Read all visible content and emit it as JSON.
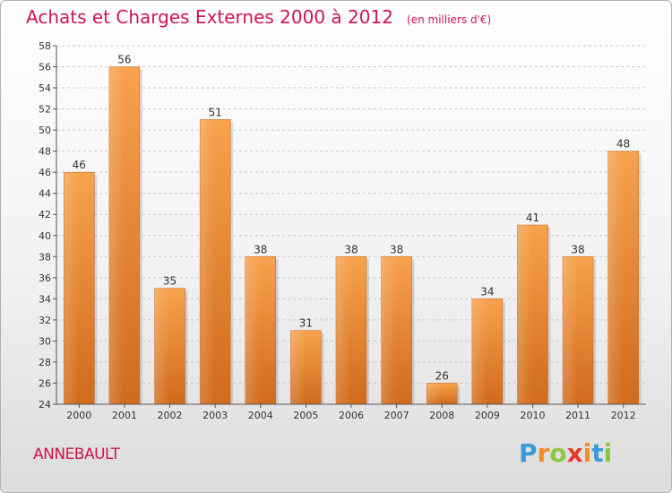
{
  "header": {
    "title": "Achats et Charges Externes 2000 à 2012",
    "subtitle": "(en milliers d'€)"
  },
  "footer": {
    "commune": "ANNEBAULT",
    "logo": {
      "letters": [
        "P",
        "r",
        "o",
        "x",
        "i",
        "t",
        "i"
      ],
      "colors": [
        "#3b9ad9",
        "#f28c28",
        "#8dc63f",
        "#e63a2e",
        "#f28c28",
        "#3b9ad9",
        "#8dc63f"
      ]
    }
  },
  "chart_data": {
    "type": "bar",
    "title": "Achats et Charges Externes 2000 à 2012",
    "subtitle": "(en milliers d'€)",
    "categories": [
      "2000",
      "2001",
      "2002",
      "2003",
      "2004",
      "2005",
      "2006",
      "2007",
      "2008",
      "2009",
      "2010",
      "2011",
      "2012"
    ],
    "values": [
      46,
      56,
      35,
      51,
      38,
      31,
      38,
      38,
      26,
      34,
      41,
      38,
      48
    ],
    "ylim": [
      24,
      58
    ],
    "yticks": [
      24,
      26,
      28,
      30,
      32,
      34,
      36,
      38,
      40,
      42,
      44,
      46,
      48,
      50,
      52,
      54,
      56,
      58
    ],
    "grid": true,
    "bar_color": "#f5a04a",
    "bar_color_dark": "#d2691e"
  }
}
